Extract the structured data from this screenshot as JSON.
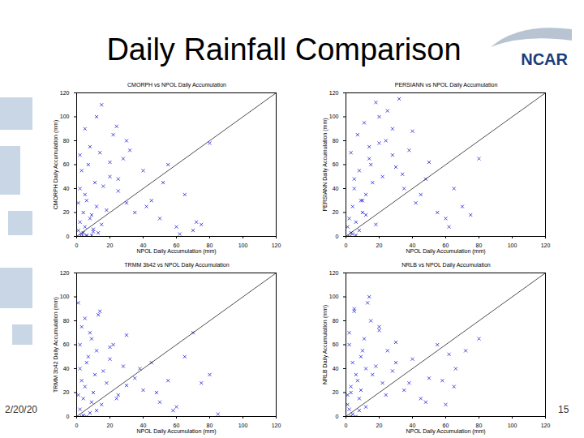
{
  "slide": {
    "title": "Daily Rainfall Comparison",
    "logo": "NCAR",
    "date": "2/20/20",
    "page": "15"
  },
  "chart_data": [
    {
      "type": "scatter",
      "title": "CMORPH vs NPOL Daily Accumulation",
      "x_label": "NPOL Daily Accumulation (mm)",
      "y_label": "CMORPH Daily Accumulation (mm)",
      "xlim": [
        0,
        120
      ],
      "ylim": [
        0,
        120
      ],
      "xticks": [
        0,
        20,
        40,
        60,
        80,
        100,
        120
      ],
      "yticks": [
        0,
        20,
        40,
        60,
        80,
        100,
        120
      ],
      "marker": "x",
      "color": "#1f1fd6",
      "one_to_one": {
        "x": [
          0,
          120
        ],
        "y": [
          0,
          120
        ]
      },
      "x": [
        1,
        2,
        3,
        4,
        5,
        6,
        8,
        10,
        12,
        15,
        2,
        3,
        5,
        7,
        9,
        11,
        14,
        18,
        20,
        22,
        25,
        28,
        30,
        5,
        8,
        12,
        15,
        20,
        25,
        30,
        35,
        40,
        45,
        50,
        55,
        60,
        65,
        70,
        75,
        80,
        4,
        6,
        10,
        16,
        24,
        32,
        42,
        52,
        62,
        72,
        2,
        1,
        3,
        6,
        9,
        13
      ],
      "y": [
        5,
        12,
        2,
        20,
        8,
        30,
        15,
        4,
        25,
        10,
        40,
        55,
        35,
        60,
        18,
        45,
        70,
        22,
        50,
        85,
        38,
        65,
        28,
        90,
        75,
        100,
        110,
        62,
        48,
        80,
        20,
        55,
        30,
        15,
        60,
        8,
        35,
        5,
        10,
        78,
        3,
        1,
        6,
        42,
        92,
        72,
        25,
        45,
        2,
        12,
        68,
        28,
        0,
        0,
        1,
        3
      ]
    },
    {
      "type": "scatter",
      "title": "PERSIANN vs NPOL Daily Accumulation",
      "x_label": "NPOL Daily Accumulation (mm)",
      "y_label": "PERSIANN Daily Accumulation (mm)",
      "xlim": [
        0,
        120
      ],
      "ylim": [
        0,
        120
      ],
      "xticks": [
        0,
        20,
        40,
        60,
        80,
        100,
        120
      ],
      "yticks": [
        0,
        20,
        40,
        60,
        80,
        100,
        120
      ],
      "marker": "x",
      "color": "#1f1fd6",
      "one_to_one": {
        "x": [
          0,
          120
        ],
        "y": [
          0,
          120
        ]
      },
      "x": [
        1,
        2,
        3,
        4,
        5,
        6,
        8,
        10,
        12,
        15,
        3,
        5,
        7,
        9,
        11,
        14,
        18,
        20,
        22,
        25,
        28,
        30,
        32,
        35,
        38,
        40,
        45,
        50,
        55,
        60,
        4,
        8,
        12,
        16,
        20,
        24,
        28,
        34,
        42,
        48,
        62,
        65,
        70,
        75,
        80,
        2,
        6,
        10,
        14,
        18
      ],
      "y": [
        8,
        15,
        3,
        25,
        40,
        12,
        55,
        20,
        35,
        60,
        70,
        48,
        85,
        30,
        95,
        65,
        112,
        78,
        50,
        105,
        90,
        58,
        115,
        40,
        72,
        88,
        35,
        62,
        20,
        15,
        2,
        5,
        18,
        45,
        100,
        80,
        68,
        52,
        28,
        48,
        8,
        40,
        25,
        18,
        65,
        0,
        1,
        30,
        75,
        10
      ]
    },
    {
      "type": "scatter",
      "title": "TRMM 3b42 vs NPOL Daily Accumulation",
      "x_label": "NPOL Daily Accumulation (mm)",
      "y_label": "TRMM 3b42 Daily Accumulation (mm)",
      "xlim": [
        0,
        120
      ],
      "ylim": [
        0,
        120
      ],
      "xticks": [
        0,
        20,
        40,
        60,
        80,
        100,
        120
      ],
      "yticks": [
        0,
        20,
        40,
        60,
        80,
        100,
        120
      ],
      "marker": "x",
      "color": "#1f1fd6",
      "one_to_one": {
        "x": [
          0,
          120
        ],
        "y": [
          0,
          120
        ]
      },
      "x": [
        1,
        2,
        3,
        4,
        5,
        6,
        8,
        10,
        12,
        15,
        2,
        3,
        5,
        7,
        9,
        11,
        14,
        18,
        20,
        22,
        25,
        28,
        30,
        35,
        40,
        45,
        50,
        55,
        60,
        65,
        4,
        8,
        12,
        16,
        20,
        24,
        30,
        38,
        48,
        58,
        70,
        75,
        80,
        85,
        3,
        6,
        1,
        2,
        9,
        13
      ],
      "y": [
        95,
        60,
        30,
        15,
        82,
        45,
        70,
        20,
        55,
        10,
        40,
        75,
        25,
        50,
        65,
        35,
        88,
        28,
        48,
        60,
        18,
        42,
        68,
        32,
        22,
        45,
        12,
        30,
        8,
        50,
        1,
        3,
        5,
        38,
        58,
        15,
        26,
        40,
        20,
        5,
        70,
        28,
        35,
        2,
        0,
        0,
        18,
        6,
        12,
        85
      ]
    },
    {
      "type": "scatter",
      "title": "NRLB vs NPOL Daily Accumulation",
      "x_label": "NPOL Daily Accumulation (mm)",
      "y_label": "NRLB Daily Accumulation (mm)",
      "xlim": [
        0,
        120
      ],
      "ylim": [
        0,
        120
      ],
      "xticks": [
        0,
        20,
        40,
        60,
        80,
        100,
        120
      ],
      "yticks": [
        0,
        20,
        40,
        60,
        80,
        100,
        120
      ],
      "marker": "x",
      "color": "#1f1fd6",
      "one_to_one": {
        "x": [
          0,
          120
        ],
        "y": [
          0,
          120
        ]
      },
      "x": [
        1,
        2,
        3,
        4,
        5,
        6,
        8,
        10,
        12,
        15,
        2,
        3,
        5,
        7,
        9,
        11,
        14,
        18,
        20,
        22,
        25,
        28,
        30,
        35,
        40,
        45,
        50,
        55,
        60,
        65,
        4,
        8,
        12,
        16,
        20,
        24,
        30,
        38,
        48,
        58,
        62,
        66,
        72,
        80,
        3,
        6,
        1,
        2,
        9,
        13
      ],
      "y": [
        10,
        70,
        25,
        45,
        88,
        35,
        15,
        55,
        40,
        80,
        60,
        20,
        90,
        30,
        50,
        65,
        100,
        42,
        72,
        28,
        55,
        38,
        62,
        22,
        48,
        15,
        32,
        60,
        10,
        25,
        2,
        5,
        8,
        35,
        75,
        18,
        45,
        28,
        12,
        30,
        52,
        40,
        55,
        65,
        0,
        0,
        18,
        6,
        22,
        95
      ]
    }
  ]
}
